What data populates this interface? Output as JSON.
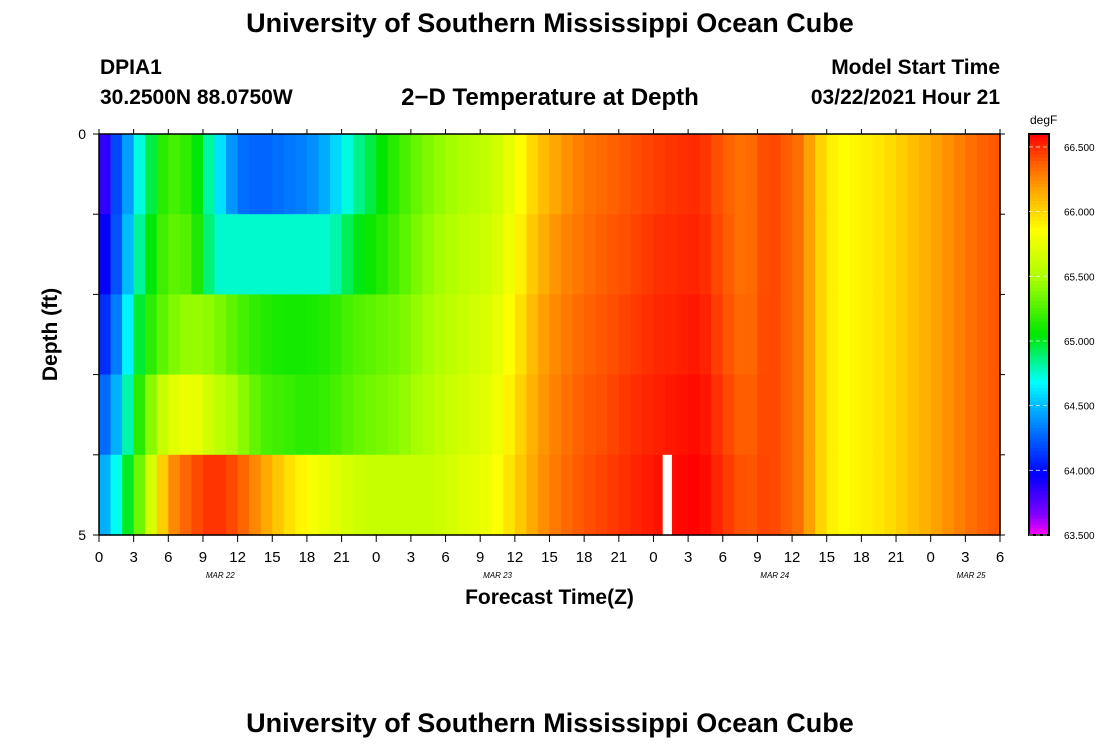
{
  "header": {
    "title": "University of Southern Mississippi Ocean Cube",
    "station_id": "DPIA1",
    "coordinates": "30.2500N 88.0750W",
    "plot_title": "2−D Temperature at Depth",
    "start_label": "Model Start Time",
    "start_value": "03/22/2021 Hour 21"
  },
  "footer": {
    "title": "University of Southern Mississippi Ocean Cube"
  },
  "chart_data": {
    "type": "heatmap",
    "title": "2−D Temperature at Depth",
    "xlabel": "Forecast Time(Z)",
    "ylabel": "Depth (ft)",
    "units": "degF",
    "y_ticks": [
      "0",
      "5"
    ],
    "x_tick_labels": [
      "0",
      "3",
      "6",
      "9",
      "12",
      "15",
      "18",
      "21",
      "0",
      "3",
      "6",
      "9",
      "12",
      "15",
      "18",
      "21",
      "0",
      "3",
      "6",
      "9",
      "12",
      "15",
      "18",
      "21",
      "0",
      "3",
      "6"
    ],
    "date_labels": [
      {
        "label": "MAR 22",
        "hour_index": 10.5
      },
      {
        "label": "MAR 23",
        "hour_index": 34.5
      },
      {
        "label": "MAR 24",
        "hour_index": 58.5
      },
      {
        "label": "MAR 25",
        "hour_index": 75.5
      }
    ],
    "x_hours_total": 78,
    "depth_layers": 5,
    "colorbar": {
      "vmin": 63.5,
      "vmax": 66.6,
      "tick_values": [
        63.5,
        64.0,
        64.5,
        65.0,
        65.5,
        66.0,
        66.5
      ],
      "tick_labels": [
        "63.500",
        "64.000",
        "64.500",
        "65.000",
        "65.500",
        "66.000",
        "66.500"
      ]
    },
    "missing_data": {
      "hour_start": 48.8,
      "hour_end": 49.6,
      "layer": 4
    },
    "temperature_degF": {
      "hours": [
        0,
        1,
        2,
        3,
        4,
        6,
        8,
        10,
        12,
        14,
        16,
        18,
        20,
        21,
        22,
        24,
        26,
        28,
        30,
        34,
        36,
        38,
        40,
        42,
        44,
        46,
        48,
        50,
        52,
        54,
        56,
        58,
        60,
        61,
        62,
        64,
        66,
        68,
        70,
        72,
        74,
        76,
        78
      ],
      "layers": [
        [
          63.6,
          64.1,
          64.25,
          64.6,
          64.85,
          65.25,
          65.15,
          64.7,
          64.3,
          64.25,
          64.3,
          64.35,
          64.5,
          64.65,
          64.8,
          65.0,
          65.2,
          65.35,
          65.45,
          65.6,
          65.8,
          66.05,
          66.2,
          66.3,
          66.35,
          66.4,
          66.45,
          66.48,
          66.5,
          66.38,
          66.3,
          66.45,
          66.35,
          66.3,
          66.05,
          65.85,
          65.9,
          65.95,
          66.05,
          66.15,
          66.25,
          66.35,
          66.4
        ],
        [
          63.8,
          64.1,
          64.3,
          64.7,
          64.95,
          65.3,
          65.25,
          64.75,
          64.75,
          64.75,
          64.75,
          64.75,
          64.75,
          64.85,
          65.0,
          65.1,
          65.25,
          65.4,
          65.5,
          65.65,
          65.85,
          66.1,
          66.25,
          66.32,
          66.38,
          66.42,
          66.48,
          66.5,
          66.52,
          66.4,
          66.3,
          66.45,
          66.35,
          66.3,
          66.05,
          65.85,
          65.9,
          65.95,
          66.05,
          66.15,
          66.25,
          66.35,
          66.4
        ],
        [
          64.0,
          64.2,
          64.45,
          64.85,
          65.1,
          65.35,
          65.45,
          65.4,
          65.25,
          65.15,
          65.1,
          65.1,
          65.15,
          65.2,
          65.25,
          65.3,
          65.35,
          65.45,
          65.55,
          65.7,
          65.9,
          66.15,
          66.28,
          66.35,
          66.4,
          66.45,
          66.5,
          66.52,
          66.55,
          66.42,
          66.32,
          66.45,
          66.35,
          66.3,
          66.05,
          65.85,
          65.9,
          65.95,
          66.05,
          66.15,
          66.25,
          66.35,
          66.4
        ],
        [
          64.2,
          64.35,
          64.6,
          65.0,
          65.3,
          65.7,
          65.8,
          65.6,
          65.45,
          65.25,
          65.2,
          65.15,
          65.2,
          65.25,
          65.3,
          65.35,
          65.4,
          65.5,
          65.6,
          65.75,
          65.95,
          66.18,
          66.3,
          66.38,
          66.42,
          66.48,
          66.52,
          66.55,
          66.58,
          66.45,
          66.35,
          66.45,
          66.35,
          66.3,
          66.05,
          65.85,
          65.9,
          65.95,
          66.05,
          66.15,
          66.25,
          66.35,
          66.4
        ],
        [
          64.4,
          64.55,
          64.85,
          65.15,
          65.5,
          66.2,
          66.4,
          66.5,
          66.4,
          66.2,
          66.0,
          65.85,
          65.75,
          65.7,
          65.65,
          65.6,
          65.6,
          65.6,
          65.65,
          65.8,
          66.0,
          66.2,
          66.32,
          66.4,
          66.45,
          66.5,
          66.55,
          66.58,
          66.6,
          66.48,
          66.38,
          66.45,
          66.35,
          66.3,
          66.05,
          65.85,
          65.9,
          65.95,
          66.05,
          66.15,
          66.25,
          66.35,
          66.4
        ]
      ]
    }
  }
}
